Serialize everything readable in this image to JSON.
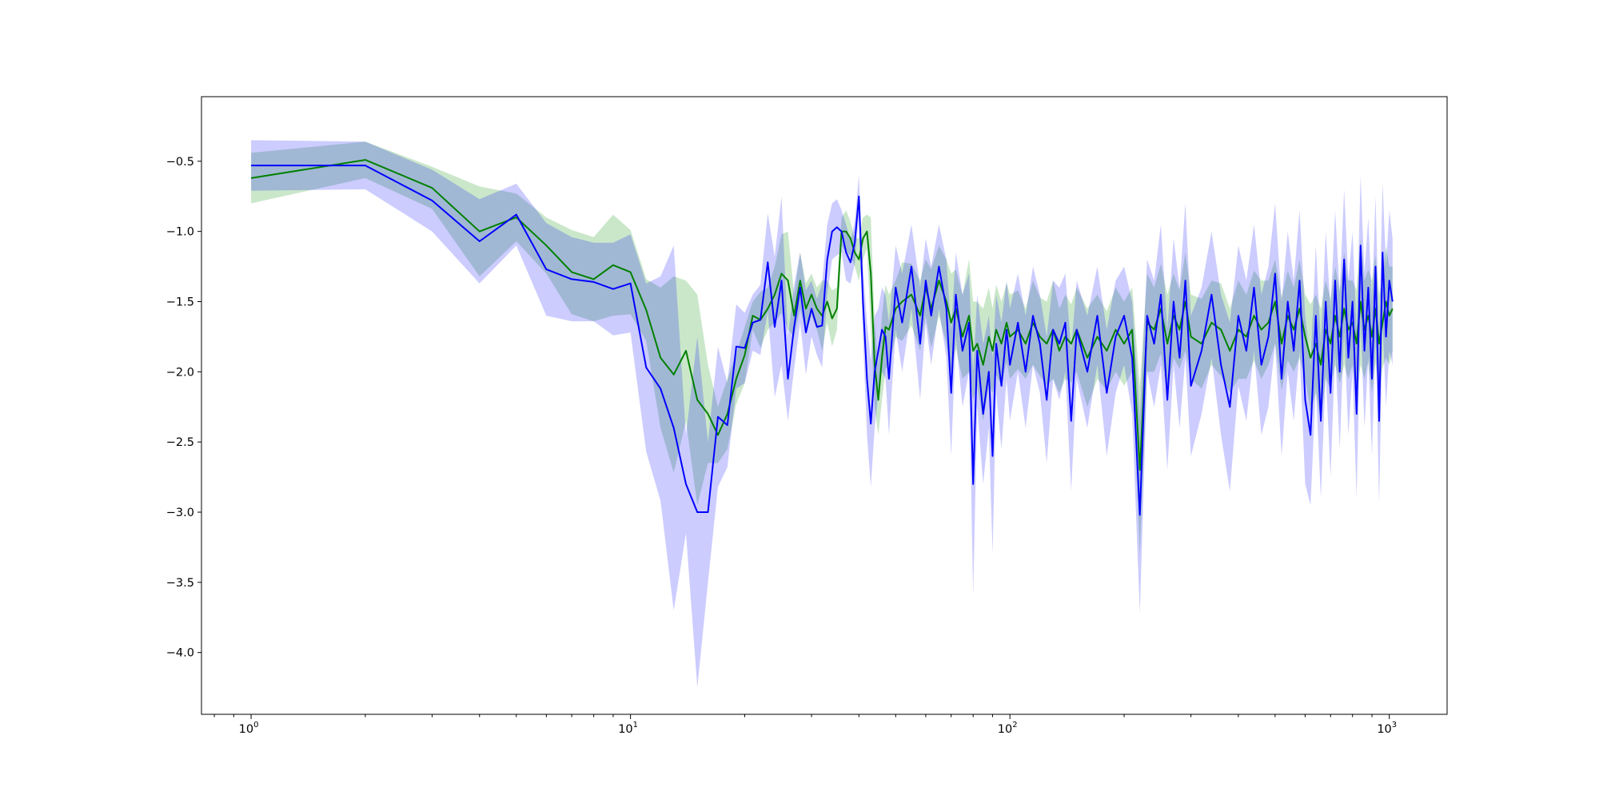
{
  "chart_data": {
    "type": "line",
    "title": "",
    "xlabel": "",
    "ylabel": "",
    "xscale": "log",
    "xlim": [
      0.74,
      1420
    ],
    "ylim": [
      -4.44,
      -0.04
    ],
    "grid": false,
    "legend": "none",
    "xticks": [
      {
        "value": 1,
        "base": "10",
        "exp": "0"
      },
      {
        "value": 10,
        "base": "10",
        "exp": "1"
      },
      {
        "value": 100,
        "base": "10",
        "exp": "2"
      },
      {
        "value": 1000,
        "base": "10",
        "exp": "3"
      }
    ],
    "yticks": [
      {
        "value": -0.5,
        "label": "−0.5"
      },
      {
        "value": -1.0,
        "label": "−1.0"
      },
      {
        "value": -1.5,
        "label": "−1.5"
      },
      {
        "value": -2.0,
        "label": "−2.0"
      },
      {
        "value": -2.5,
        "label": "−2.5"
      },
      {
        "value": -3.0,
        "label": "−3.0"
      },
      {
        "value": -3.5,
        "label": "−3.5"
      },
      {
        "value": -4.0,
        "label": "−4.0"
      }
    ],
    "series": [
      {
        "color": "#008000",
        "band_color": "#2ca02c",
        "band_opacity": 0.25,
        "x": [
          1,
          2,
          3,
          4,
          5,
          6,
          7,
          8,
          9,
          10,
          11,
          12,
          13,
          14,
          15,
          16,
          17,
          18,
          19,
          20,
          21,
          22,
          23,
          24,
          25,
          26,
          27,
          28,
          29,
          30,
          31,
          32,
          33,
          34,
          35,
          36,
          37,
          38,
          39,
          40,
          41,
          42,
          43,
          44,
          45,
          46,
          47,
          48,
          50,
          52,
          55,
          58,
          60,
          62,
          65,
          68,
          70,
          72,
          75,
          78,
          80,
          82,
          85,
          88,
          90,
          92,
          95,
          98,
          100,
          105,
          110,
          115,
          120,
          125,
          130,
          135,
          140,
          145,
          150,
          160,
          170,
          180,
          190,
          200,
          210,
          220,
          230,
          240,
          250,
          260,
          270,
          280,
          290,
          300,
          320,
          340,
          360,
          380,
          400,
          420,
          440,
          460,
          480,
          500,
          520,
          540,
          560,
          580,
          600,
          620,
          640,
          660,
          680,
          700,
          720,
          740,
          760,
          780,
          800,
          820,
          840,
          860,
          880,
          900,
          920,
          940,
          960,
          980,
          1000,
          1020
        ],
        "y": [
          -0.62,
          -0.49,
          -0.69,
          -1.0,
          -0.9,
          -1.1,
          -1.29,
          -1.34,
          -1.24,
          -1.29,
          -1.56,
          -1.9,
          -2.02,
          -1.85,
          -2.2,
          -2.3,
          -2.45,
          -2.3,
          -2.05,
          -1.88,
          -1.6,
          -1.63,
          -1.55,
          -1.45,
          -1.3,
          -1.35,
          -1.6,
          -1.35,
          -1.55,
          -1.45,
          -1.55,
          -1.6,
          -1.5,
          -1.62,
          -1.55,
          -1.0,
          -1.0,
          -1.05,
          -1.15,
          -1.2,
          -1.05,
          -1.0,
          -1.3,
          -1.95,
          -2.2,
          -1.9,
          -1.68,
          -1.7,
          -1.55,
          -1.5,
          -1.45,
          -1.6,
          -1.4,
          -1.55,
          -1.35,
          -1.5,
          -1.65,
          -1.55,
          -1.75,
          -1.6,
          -1.85,
          -1.8,
          -1.95,
          -1.75,
          -1.85,
          -1.7,
          -1.8,
          -1.65,
          -1.75,
          -1.7,
          -1.8,
          -1.65,
          -1.75,
          -1.8,
          -1.7,
          -1.85,
          -1.75,
          -1.8,
          -1.7,
          -1.9,
          -1.75,
          -1.85,
          -1.7,
          -1.8,
          -1.7,
          -2.7,
          -1.65,
          -1.7,
          -1.55,
          -1.8,
          -1.6,
          -1.7,
          -1.5,
          -1.75,
          -1.8,
          -1.65,
          -1.7,
          -1.85,
          -1.7,
          -1.75,
          -1.6,
          -1.7,
          -1.65,
          -1.5,
          -1.8,
          -1.6,
          -1.7,
          -1.55,
          -1.75,
          -1.9,
          -1.8,
          -1.95,
          -1.7,
          -1.8,
          -1.6,
          -1.75,
          -1.55,
          -1.7,
          -1.65,
          -1.8,
          -1.5,
          -1.7,
          -1.6,
          -1.75,
          -1.55,
          -1.8,
          -1.65,
          -1.5,
          -1.6,
          -1.55
        ],
        "err": [
          0.18,
          0.13,
          0.15,
          0.32,
          0.17,
          0.2,
          0.3,
          0.3,
          0.36,
          0.3,
          0.22,
          0.5,
          0.7,
          0.5,
          0.75,
          0.35,
          0.2,
          0.25,
          0.18,
          0.2,
          0.1,
          0.2,
          0.15,
          0.2,
          0.28,
          0.35,
          0.15,
          0.2,
          0.18,
          0.15,
          0.15,
          0.25,
          0.15,
          0.2,
          0.15,
          0.1,
          0.15,
          0.12,
          0.1,
          0.15,
          0.15,
          0.12,
          0.4,
          0.3,
          0.25,
          0.3,
          0.3,
          0.25,
          0.2,
          0.28,
          0.22,
          0.25,
          0.2,
          0.28,
          0.25,
          0.3,
          0.35,
          0.28,
          0.3,
          0.4,
          0.35,
          0.3,
          0.4,
          0.35,
          0.3,
          0.32,
          0.3,
          0.28,
          0.3,
          0.28,
          0.25,
          0.3,
          0.28,
          0.3,
          0.35,
          0.3,
          0.3,
          0.28,
          0.3,
          0.35,
          0.3,
          0.28,
          0.3,
          0.3,
          0.3,
          0.6,
          0.35,
          0.3,
          0.32,
          0.35,
          0.3,
          0.28,
          0.35,
          0.3,
          0.32,
          0.3,
          0.33,
          0.3,
          0.35,
          0.3,
          0.32,
          0.35,
          0.3,
          0.3,
          0.33,
          0.32,
          0.3,
          0.35,
          0.3,
          0.38,
          0.35,
          0.4,
          0.35,
          0.32,
          0.35,
          0.33,
          0.4,
          0.35,
          0.3,
          0.38,
          0.45,
          0.35,
          0.33,
          0.4,
          0.38,
          0.35,
          0.32,
          0.4,
          0.35,
          0.3
        ]
      },
      {
        "color": "#0000ff",
        "band_color": "#0000ff",
        "band_opacity": 0.2,
        "x": [
          1,
          2,
          3,
          4,
          5,
          6,
          7,
          8,
          9,
          10,
          11,
          12,
          13,
          14,
          15,
          16,
          17,
          18,
          19,
          20,
          21,
          22,
          23,
          24,
          25,
          26,
          27,
          28,
          29,
          30,
          31,
          32,
          33,
          34,
          35,
          36,
          37,
          38,
          39,
          40,
          41,
          42,
          43,
          44,
          45,
          46,
          47,
          48,
          50,
          52,
          55,
          58,
          60,
          62,
          65,
          68,
          70,
          72,
          75,
          78,
          80,
          82,
          85,
          88,
          90,
          92,
          95,
          98,
          100,
          105,
          110,
          115,
          120,
          125,
          130,
          135,
          140,
          145,
          150,
          160,
          170,
          180,
          190,
          200,
          210,
          220,
          230,
          240,
          250,
          260,
          270,
          280,
          290,
          300,
          320,
          340,
          360,
          380,
          400,
          420,
          440,
          460,
          480,
          500,
          520,
          540,
          560,
          580,
          600,
          620,
          640,
          660,
          680,
          700,
          720,
          740,
          760,
          780,
          800,
          820,
          840,
          860,
          880,
          900,
          920,
          940,
          960,
          980,
          1000,
          1020
        ],
        "y": [
          -0.53,
          -0.53,
          -0.78,
          -1.07,
          -0.88,
          -1.27,
          -1.34,
          -1.36,
          -1.41,
          -1.37,
          -1.97,
          -2.12,
          -2.4,
          -2.8,
          -3.0,
          -3.0,
          -2.32,
          -2.38,
          -1.82,
          -1.83,
          -1.65,
          -1.63,
          -1.22,
          -1.68,
          -1.35,
          -2.05,
          -1.68,
          -1.4,
          -1.72,
          -1.55,
          -1.68,
          -1.67,
          -1.2,
          -1.0,
          -0.97,
          -1.0,
          -1.15,
          -1.22,
          -1.08,
          -0.75,
          -1.5,
          -2.05,
          -2.37,
          -2.0,
          -1.85,
          -1.7,
          -1.75,
          -2.05,
          -1.4,
          -1.65,
          -1.25,
          -1.8,
          -1.35,
          -1.6,
          -1.25,
          -1.55,
          -2.15,
          -1.45,
          -1.85,
          -1.65,
          -2.8,
          -1.85,
          -2.3,
          -2.0,
          -2.6,
          -1.8,
          -2.1,
          -1.7,
          -1.95,
          -1.65,
          -2.0,
          -1.6,
          -1.8,
          -2.2,
          -1.7,
          -1.8,
          -1.65,
          -2.35,
          -1.7,
          -2.0,
          -1.6,
          -2.15,
          -1.75,
          -1.6,
          -1.9,
          -3.02,
          -1.6,
          -1.8,
          -1.45,
          -2.2,
          -1.5,
          -1.9,
          -1.35,
          -2.1,
          -1.85,
          -1.45,
          -1.95,
          -2.25,
          -1.6,
          -1.85,
          -1.4,
          -1.95,
          -1.75,
          -1.3,
          -2.05,
          -1.5,
          -1.85,
          -1.35,
          -2.2,
          -2.45,
          -1.6,
          -2.35,
          -1.5,
          -2.15,
          -1.35,
          -2.0,
          -1.2,
          -1.9,
          -1.5,
          -2.3,
          -1.1,
          -1.85,
          -1.4,
          -2.05,
          -1.25,
          -2.35,
          -1.15,
          -1.75,
          -1.35,
          -1.5
        ],
        "err": [
          0.18,
          0.17,
          0.22,
          0.3,
          0.22,
          0.33,
          0.3,
          0.28,
          0.33,
          0.35,
          0.6,
          0.8,
          1.3,
          0.35,
          1.25,
          0.5,
          0.5,
          0.3,
          0.3,
          0.25,
          0.2,
          0.25,
          0.35,
          0.5,
          0.6,
          0.3,
          0.3,
          0.25,
          0.3,
          0.2,
          0.2,
          0.3,
          0.25,
          0.2,
          0.2,
          0.15,
          0.2,
          0.15,
          0.15,
          0.15,
          0.25,
          0.4,
          0.45,
          0.4,
          0.3,
          0.3,
          0.3,
          0.4,
          0.3,
          0.35,
          0.3,
          0.4,
          0.3,
          0.35,
          0.3,
          0.35,
          0.45,
          0.3,
          0.4,
          0.35,
          0.8,
          0.4,
          0.5,
          0.4,
          0.7,
          0.35,
          0.45,
          0.35,
          0.4,
          0.35,
          0.4,
          0.35,
          0.35,
          0.45,
          0.35,
          0.4,
          0.35,
          0.5,
          0.35,
          0.4,
          0.35,
          0.45,
          0.4,
          0.35,
          0.4,
          0.7,
          0.4,
          0.45,
          0.5,
          0.5,
          0.45,
          0.5,
          0.55,
          0.5,
          0.45,
          0.45,
          0.5,
          0.6,
          0.5,
          0.5,
          0.45,
          0.5,
          0.5,
          0.5,
          0.55,
          0.5,
          0.5,
          0.5,
          0.6,
          0.5,
          0.5,
          0.55,
          0.5,
          0.6,
          0.5,
          0.55,
          0.5,
          0.55,
          0.5,
          0.6,
          0.5,
          0.55,
          0.5,
          0.55,
          0.5,
          0.6,
          0.5,
          0.5,
          0.5,
          0.45
        ]
      }
    ]
  }
}
